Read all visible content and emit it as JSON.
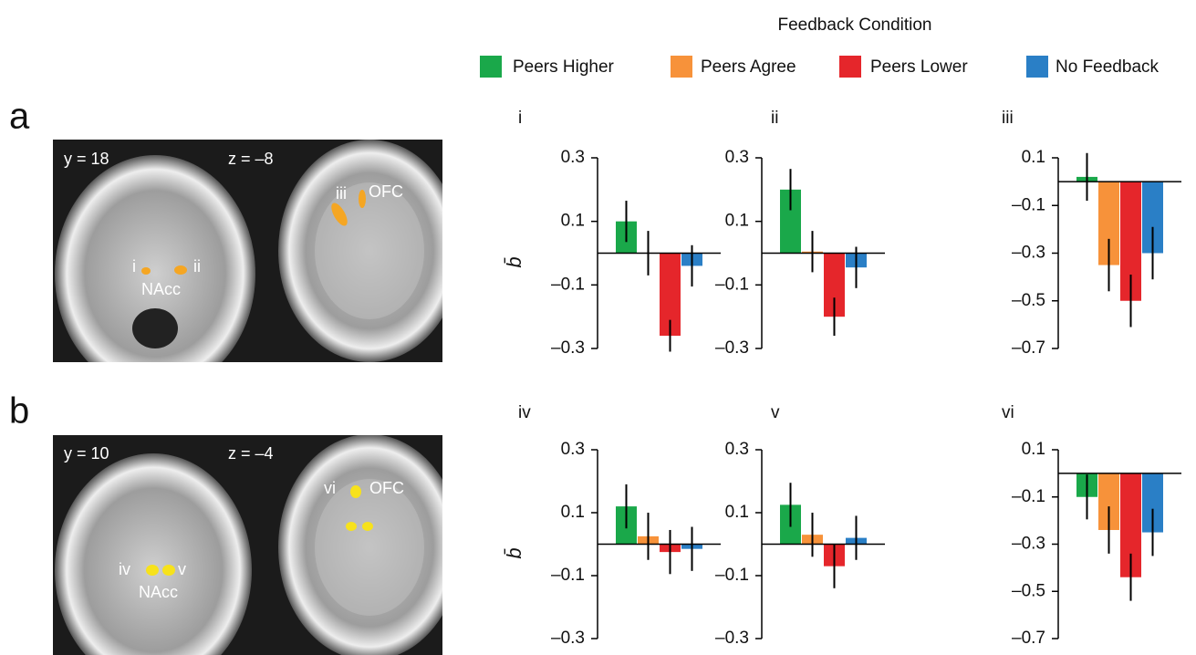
{
  "legend": {
    "title": "Feedback Condition",
    "items": [
      {
        "name": "Peers Higher",
        "color": "#1aa84a"
      },
      {
        "name": "Peers Agree",
        "color": "#f7923a"
      },
      {
        "name": "Peers Lower",
        "color": "#e5262b"
      },
      {
        "name": "No Feedback",
        "color": "#2a7fc6"
      }
    ]
  },
  "panels": [
    {
      "label": "a",
      "image_labels": [
        "y = 18",
        "z = –8",
        "i",
        "ii",
        "NAcc",
        "iii",
        "OFC"
      ]
    },
    {
      "label": "b",
      "image_labels": [
        "y = 10",
        "z = –4",
        "vi",
        "OFC",
        "iv",
        "v",
        "NAcc"
      ]
    }
  ],
  "chart_data": [
    {
      "type": "bar",
      "title": "i",
      "ylabel": "b̄",
      "values": [
        0.1,
        0.0,
        -0.26,
        -0.04
      ],
      "errors": [
        0.065,
        0.07,
        0.05,
        0.065
      ],
      "ylim": [
        -0.3,
        0.3
      ],
      "yticks": [
        0.3,
        0.1,
        {
          "value": -0.1,
          "label": "–0.1"
        },
        {
          "value": -0.3,
          "label": "–0.3"
        }
      ]
    },
    {
      "type": "bar",
      "title": "ii",
      "values": [
        0.2,
        0.005,
        -0.2,
        -0.045
      ],
      "errors": [
        0.065,
        0.065,
        0.06,
        0.065
      ],
      "ylim": [
        -0.3,
        0.3
      ],
      "yticks": [
        0.3,
        0.1,
        {
          "value": -0.1,
          "label": "–0.1"
        },
        {
          "value": -0.3,
          "label": "–0.3"
        }
      ]
    },
    {
      "type": "bar",
      "title": "iii",
      "values": [
        0.02,
        -0.35,
        -0.5,
        -0.3
      ],
      "errors": [
        0.1,
        0.11,
        0.11,
        0.11
      ],
      "ylim": [
        -0.7,
        0.1
      ],
      "yticks": [
        0.1,
        {
          "value": -0.1,
          "label": "–0.1"
        },
        {
          "value": -0.3,
          "label": "–0.3"
        },
        {
          "value": -0.5,
          "label": "–0.5"
        },
        {
          "value": -0.7,
          "label": "–0.7"
        }
      ]
    },
    {
      "type": "bar",
      "title": "iv",
      "ylabel": "b̄",
      "values": [
        0.12,
        0.025,
        -0.025,
        -0.015
      ],
      "errors": [
        0.07,
        0.075,
        0.07,
        0.07
      ],
      "ylim": [
        -0.3,
        0.3
      ],
      "yticks": [
        0.3,
        0.1,
        {
          "value": -0.1,
          "label": "–0.1"
        },
        {
          "value": -0.3,
          "label": "–0.3"
        }
      ]
    },
    {
      "type": "bar",
      "title": "v",
      "values": [
        0.125,
        0.03,
        -0.07,
        0.02
      ],
      "errors": [
        0.07,
        0.07,
        0.07,
        0.07
      ],
      "ylim": [
        -0.3,
        0.3
      ],
      "yticks": [
        0.3,
        0.1,
        {
          "value": -0.1,
          "label": "–0.1"
        },
        {
          "value": -0.3,
          "label": "–0.3"
        }
      ]
    },
    {
      "type": "bar",
      "title": "vi",
      "values": [
        -0.1,
        -0.24,
        -0.44,
        -0.25
      ],
      "errors": [
        0.095,
        0.1,
        0.1,
        0.1
      ],
      "ylim": [
        -0.7,
        0.1
      ],
      "yticks": [
        0.1,
        {
          "value": -0.1,
          "label": "–0.1"
        },
        {
          "value": -0.3,
          "label": "–0.3"
        },
        {
          "value": -0.5,
          "label": "–0.5"
        },
        {
          "value": -0.7,
          "label": "–0.7"
        }
      ]
    }
  ]
}
